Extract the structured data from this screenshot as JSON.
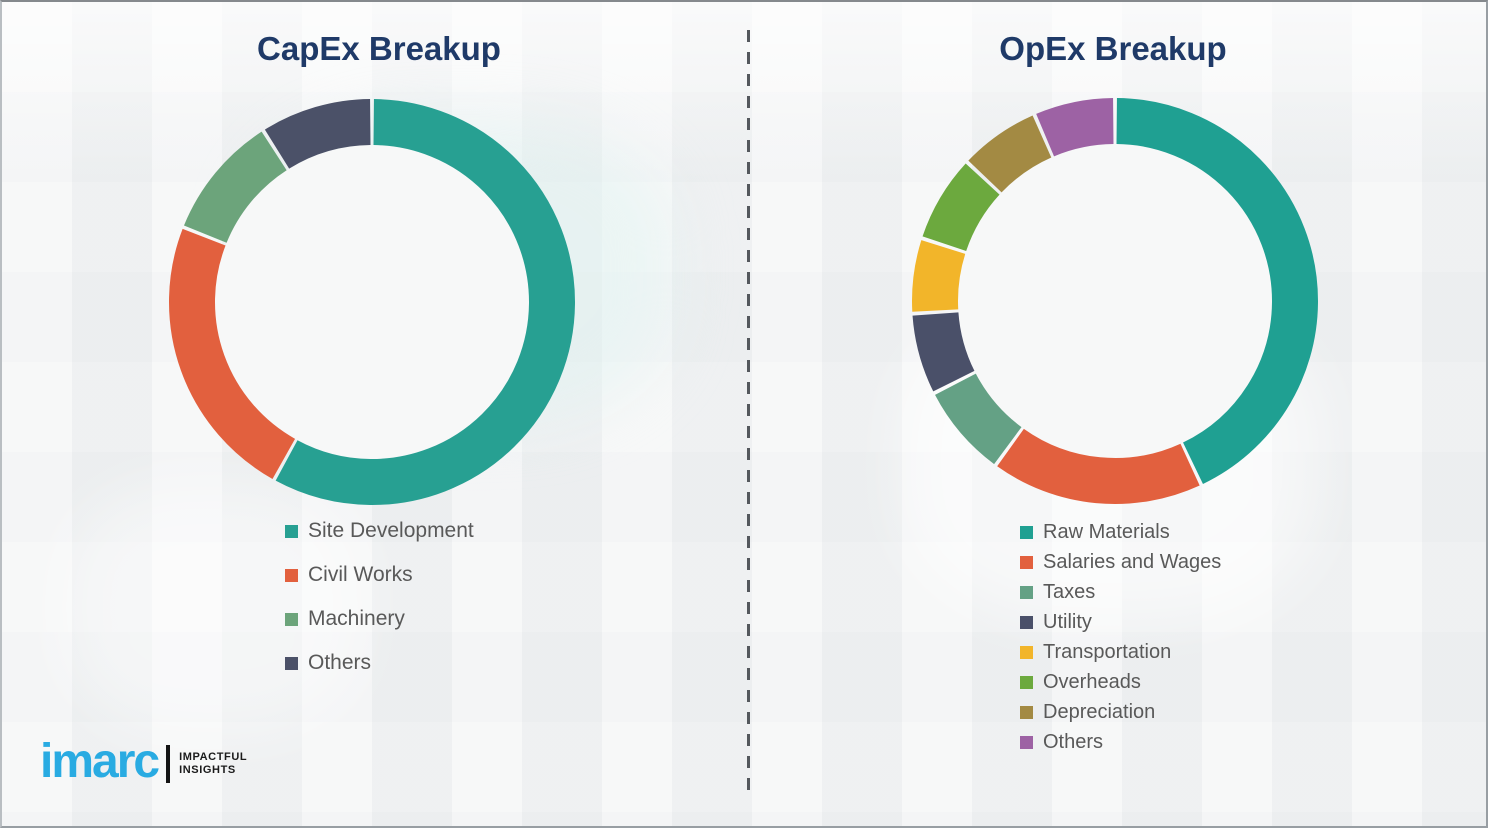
{
  "meta": {
    "background_color": "#eff1f2",
    "border_color": "#989ea3",
    "title_color": "#1F3A68",
    "legend_text_color": "#595959",
    "divider_color": "#54585d",
    "donut_hole_color": "#f7f8f8"
  },
  "chart_data": [
    {
      "type": "pie",
      "subtype": "donut",
      "title": "CapEx Breakup",
      "labels": [
        "Site Development",
        "Civil Works",
        "Machinery",
        "Others"
      ],
      "values": [
        58,
        23,
        10,
        9
      ],
      "colors": [
        "#27A092",
        "#E2603E",
        "#6CA47B",
        "#4B5168"
      ],
      "start_angle_deg": 0,
      "direction": "clockwise",
      "legend_position": "below-left",
      "data_labels_shown": false
    },
    {
      "type": "pie",
      "subtype": "donut",
      "title": "OpEx Breakup",
      "labels": [
        "Raw Materials",
        "Salaries and Wages",
        "Taxes",
        "Utility",
        "Transportation",
        "Overheads",
        "Depreciation",
        "Others"
      ],
      "values": [
        43,
        17,
        7.5,
        6.5,
        6,
        7,
        6.5,
        6.5
      ],
      "colors": [
        "#1FA092",
        "#E2603E",
        "#64A185",
        "#4A5069",
        "#F2B52A",
        "#6CA93E",
        "#A38A43",
        "#9D62A4"
      ],
      "start_angle_deg": 0,
      "direction": "clockwise",
      "legend_position": "below-left",
      "data_labels_shown": false
    }
  ],
  "logo": {
    "brand": "imarc",
    "brand_color": "#29ABE2",
    "bar_color": "#141414",
    "tagline_line1": "IMPACTFUL",
    "tagline_line2": "INSIGHTS",
    "tagline_color": "#1b1b1b"
  }
}
